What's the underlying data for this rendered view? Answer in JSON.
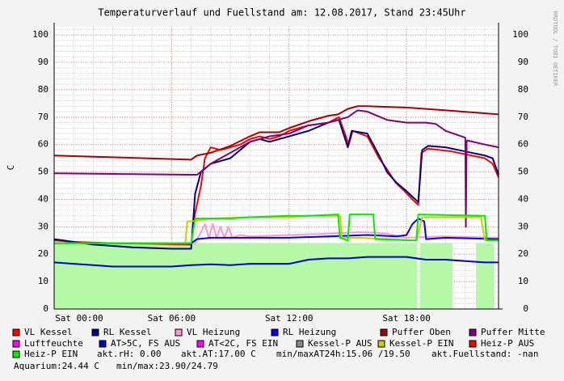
{
  "chart_data": {
    "type": "line",
    "title": "Temperaturverlauf und Fuellstand am: 12.08.2017, Stand 23:45Uhr",
    "y_label": "C",
    "watermark": "RRDTOOL / TOBI OETIKER",
    "xlim": [
      0,
      22.7
    ],
    "xticks": [
      {
        "value": 0,
        "label": "Sat 00:00"
      },
      {
        "value": 6,
        "label": "Sat 06:00"
      },
      {
        "value": 12,
        "label": "Sat 12:00"
      },
      {
        "value": 18,
        "label": "Sat 18:00"
      }
    ],
    "ylim": [
      0,
      103
    ],
    "yticks": [
      0,
      10,
      20,
      30,
      40,
      50,
      60,
      70,
      80,
      90,
      100
    ],
    "grid": true,
    "area": {
      "color": "#b4f8a8",
      "x": [
        0,
        18.55,
        18.6,
        18.68,
        20.35,
        21,
        21.55,
        22.47
      ],
      "values": [
        24,
        24,
        null,
        24,
        24,
        null,
        24,
        24
      ]
    },
    "series": [
      {
        "name": "VL Kessel",
        "color": "#ff0000",
        "x": [
          0,
          1,
          3,
          5,
          7,
          7.2,
          7.5,
          7.7,
          8,
          8.5,
          9,
          9.5,
          10,
          10.5,
          11,
          11.5,
          12,
          13,
          14,
          14.55,
          15.05,
          15.25,
          16,
          16.6,
          17,
          17.45,
          17.9,
          18.3,
          18.6,
          18.76,
          19.1,
          20.3,
          22,
          22.4,
          22.7
        ],
        "values": [
          25,
          24.5,
          24,
          23.8,
          23.5,
          35,
          45,
          55,
          59,
          58,
          59,
          60,
          62,
          63,
          62,
          63,
          65,
          67,
          68,
          70,
          60,
          65,
          63,
          55,
          51,
          46,
          43,
          40,
          38,
          57,
          58.5,
          57.5,
          55,
          53,
          48
        ]
      },
      {
        "name": "RL Kessel",
        "color": "#000080",
        "x": [
          0,
          2,
          4,
          6,
          7,
          7.2,
          7.5,
          8,
          8.5,
          9,
          9.5,
          10,
          10.5,
          11,
          11.5,
          12,
          13,
          14,
          14.55,
          15,
          15.2,
          16,
          16.6,
          17,
          17.5,
          18,
          18.6,
          18.8,
          19.1,
          20,
          21,
          22,
          22.4,
          22.7
        ],
        "values": [
          25.5,
          23.5,
          22.5,
          22,
          22,
          42,
          50,
          53,
          54,
          55,
          58,
          61,
          62,
          61,
          62,
          63,
          65,
          68,
          69,
          59,
          65,
          64,
          56,
          50,
          46,
          43,
          39,
          58,
          59.5,
          59,
          57.5,
          56,
          55,
          49
        ]
      },
      {
        "name": "VL Heizung",
        "color": "#ff99cc",
        "x": [
          0,
          7,
          7.2,
          7.5,
          7.7,
          7.9,
          8.1,
          8.3,
          8.5,
          8.7,
          8.9,
          9.1,
          9.5,
          10,
          12,
          14,
          15.5,
          16,
          17,
          18,
          19,
          20,
          22.7
        ],
        "values": [
          24,
          24,
          24,
          28,
          31,
          26,
          31,
          26,
          30,
          26,
          30,
          26,
          27,
          26.5,
          27,
          27.5,
          28,
          28,
          27.5,
          26,
          26.3,
          26.5,
          26
        ]
      },
      {
        "name": "RL Heizung",
        "color": "#0000ff",
        "x": [
          0,
          6,
          7,
          7.3,
          8,
          10,
          12,
          14,
          16,
          17.5,
          18,
          18.3,
          18.6,
          18.9,
          19,
          20,
          22.7
        ],
        "values": [
          24,
          24,
          24,
          25.5,
          26,
          26,
          26,
          26.5,
          27,
          26.5,
          27,
          31,
          33,
          32,
          25.5,
          26,
          25.5
        ]
      },
      {
        "name": "Puffer Oben",
        "color": "#aa0000",
        "x": [
          0,
          7,
          7.3,
          8,
          9,
          10,
          10.5,
          11.5,
          12,
          13,
          14,
          14.5,
          15,
          15.5,
          16,
          18,
          20,
          22.7
        ],
        "values": [
          56,
          54.5,
          56,
          57,
          59.5,
          63,
          64.5,
          64.5,
          66,
          68.5,
          70.5,
          71,
          73,
          74,
          74,
          73.5,
          72.5,
          71
        ]
      },
      {
        "name": "Puffer Mitte",
        "color": "#800080",
        "x": [
          0,
          7,
          7.3,
          8,
          9,
          10,
          11,
          12,
          13,
          14,
          15,
          15.5,
          16,
          17,
          18,
          19,
          19.5,
          20,
          21,
          21.03,
          21.07,
          21.1,
          22,
          22.7
        ],
        "values": [
          49.5,
          49,
          49,
          53,
          57,
          61,
          63,
          64,
          67,
          68,
          70,
          72.5,
          72,
          69,
          68,
          68,
          67.5,
          65,
          62.5,
          30,
          61,
          61.5,
          60,
          59
        ]
      },
      {
        "name": "Luftfeuchte",
        "color": "#ff00ff"
      },
      {
        "name": "AT>5C, FS AUS",
        "color": "#0000cc",
        "x": [
          0,
          1,
          2,
          3,
          4,
          5,
          6,
          7,
          8,
          9,
          10,
          11,
          12,
          13,
          14,
          15,
          16,
          17,
          18,
          19,
          20,
          21,
          22,
          22.7
        ],
        "values": [
          17,
          16.5,
          16,
          15.5,
          15.5,
          15.5,
          15.5,
          16,
          16.3,
          16,
          16.5,
          16.5,
          16.5,
          18,
          18.5,
          18.5,
          19,
          19,
          19,
          18,
          18,
          17.5,
          17,
          17
        ]
      },
      {
        "name": "AT<2C, FS EIN",
        "color": "#ff00ff"
      },
      {
        "name": "Kessel-P AUS",
        "color": "#888888"
      },
      {
        "name": "Kessel-P EIN",
        "color": "#cccc00",
        "x": [
          0,
          6.7,
          6.8,
          7,
          8,
          10,
          12,
          13,
          14,
          14.6,
          14.7,
          15.5,
          18.5,
          18.8,
          21.8,
          22,
          22.7
        ],
        "values": [
          24,
          24,
          32,
          32,
          33,
          33.5,
          33.5,
          34,
          34,
          34,
          26,
          26,
          25,
          33.5,
          33.5,
          25,
          25
        ]
      },
      {
        "name": "Heiz-P AUS",
        "color": "#ff0000"
      },
      {
        "name": "Heiz-P EIN",
        "color": "#00ee00",
        "x": [
          0,
          7,
          7.2,
          8,
          9,
          10,
          12,
          13,
          14.5,
          14.6,
          15,
          15.1,
          16.3,
          16.4,
          18.5,
          18.6,
          22,
          22.1,
          22.7
        ],
        "values": [
          24,
          24,
          33,
          33,
          33,
          33.5,
          34,
          34,
          34.5,
          26,
          25,
          34.5,
          34.5,
          25.5,
          25,
          34.5,
          34,
          25,
          25
        ]
      }
    ],
    "notes": [
      "akt.rH: 0.00",
      "akt.AT:17.00 C",
      "min/maxAT24h:15.06 /19.50",
      "akt.Fuellstand: -nan",
      "Aquarium:24.44 C",
      "min/max:23.90/24.79"
    ]
  }
}
